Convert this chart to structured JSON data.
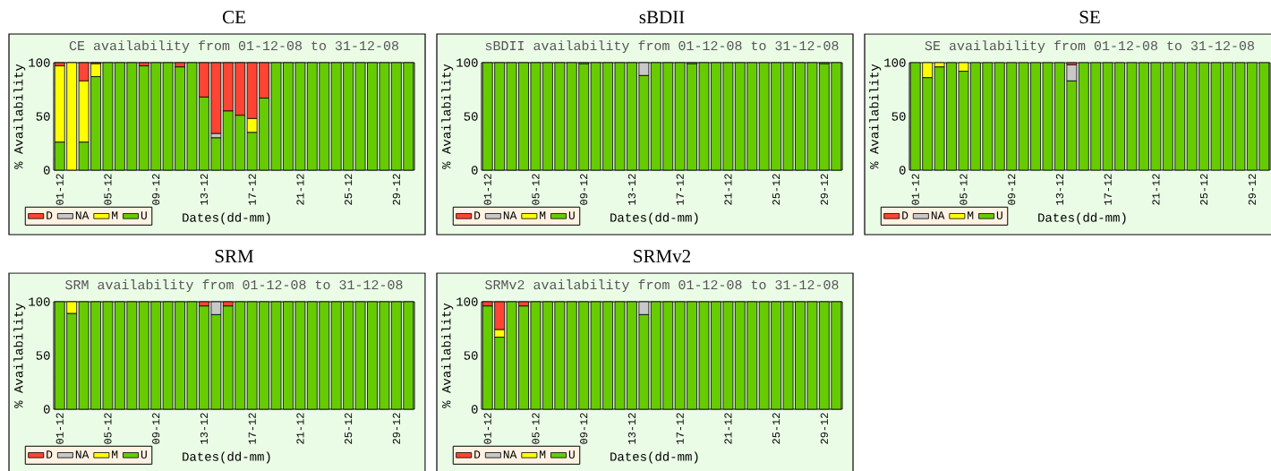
{
  "chart_data": [
    {
      "type": "bar",
      "stacked": true,
      "title": "CE",
      "subtitle": "CE availability from 01-12-08 to 31-12-08",
      "xlabel": "Dates(dd-mm)",
      "ylabel": "% Availability",
      "legend": "bottom left",
      "categories": [
        "01-12",
        null,
        null,
        null,
        "05-12",
        null,
        null,
        null,
        "09-12",
        null,
        null,
        null,
        "13-12",
        null,
        null,
        null,
        "17-12",
        null,
        null,
        null,
        "21-12",
        null,
        null,
        null,
        "25-12",
        null,
        null,
        null,
        "29-12",
        null
      ],
      "ylim": [
        0,
        100
      ],
      "yticks": [
        0,
        {
          "value": 10,
          "label": null
        },
        {
          "value": 20,
          "label": null
        },
        {
          "value": 30,
          "label": null
        },
        {
          "value": 40,
          "label": null
        },
        50,
        {
          "value": 60,
          "label": null
        },
        {
          "value": 70,
          "label": null
        },
        {
          "value": 80,
          "label": null
        },
        {
          "value": 90,
          "label": null
        },
        100
      ],
      "series": [
        {
          "name": "U",
          "color": "#66cc00",
          "values": [
            26,
            0,
            26,
            87,
            100,
            100,
            100,
            97,
            100,
            100,
            96,
            100,
            68,
            30,
            55,
            51,
            35,
            67,
            100,
            100,
            100,
            100,
            100,
            100,
            100,
            100,
            100,
            100,
            100,
            100
          ]
        },
        {
          "name": "M",
          "color": "#ffff00",
          "values": [
            71,
            100,
            57,
            12,
            0,
            0,
            0,
            0,
            0,
            0,
            0,
            0,
            0,
            0,
            0,
            0,
            13,
            0,
            0,
            0,
            0,
            0,
            0,
            0,
            0,
            0,
            0,
            0,
            0,
            0
          ]
        },
        {
          "name": "NA",
          "color": "#c8c8c8",
          "values": [
            0,
            0,
            0,
            0,
            0,
            0,
            0,
            0,
            0,
            0,
            0,
            0,
            0,
            4,
            0,
            0,
            0,
            0,
            0,
            0,
            0,
            0,
            0,
            0,
            0,
            0,
            0,
            0,
            0,
            0
          ]
        },
        {
          "name": "D",
          "color": "#ff4433",
          "values": [
            3,
            0,
            17,
            1,
            0,
            0,
            0,
            3,
            0,
            0,
            4,
            0,
            32,
            66,
            45,
            49,
            52,
            33,
            0,
            0,
            0,
            0,
            0,
            0,
            0,
            0,
            0,
            0,
            0,
            0
          ]
        }
      ]
    },
    {
      "type": "bar",
      "stacked": true,
      "title": "sBDII",
      "subtitle": "sBDII availability from 01-12-08 to 31-12-08",
      "xlabel": "Dates(dd-mm)",
      "ylabel": "% Availability",
      "legend": "bottom left",
      "categories": [
        "01-12",
        null,
        null,
        null,
        "05-12",
        null,
        null,
        null,
        "09-12",
        null,
        null,
        null,
        "13-12",
        null,
        null,
        null,
        "17-12",
        null,
        null,
        null,
        "21-12",
        null,
        null,
        null,
        "25-12",
        null,
        null,
        null,
        "29-12",
        null
      ],
      "ylim": [
        0,
        100
      ],
      "yticks": [
        0,
        {
          "value": 10,
          "label": null
        },
        {
          "value": 20,
          "label": null
        },
        {
          "value": 30,
          "label": null
        },
        {
          "value": 40,
          "label": null
        },
        50,
        {
          "value": 60,
          "label": null
        },
        {
          "value": 70,
          "label": null
        },
        {
          "value": 80,
          "label": null
        },
        {
          "value": 90,
          "label": null
        },
        100
      ],
      "series": [
        {
          "name": "U",
          "color": "#66cc00",
          "values": [
            100,
            100,
            100,
            100,
            100,
            100,
            100,
            100,
            99,
            100,
            100,
            100,
            100,
            88,
            100,
            100,
            100,
            99,
            100,
            100,
            100,
            100,
            100,
            100,
            100,
            100,
            100,
            100,
            99,
            100
          ]
        },
        {
          "name": "M",
          "color": "#ffff00",
          "values": [
            0,
            0,
            0,
            0,
            0,
            0,
            0,
            0,
            0,
            0,
            0,
            0,
            0,
            0,
            0,
            0,
            0,
            0,
            0,
            0,
            0,
            0,
            0,
            0,
            0,
            0,
            0,
            0,
            0,
            0
          ]
        },
        {
          "name": "NA",
          "color": "#c8c8c8",
          "values": [
            0,
            0,
            0,
            0,
            0,
            0,
            0,
            0,
            1,
            0,
            0,
            0,
            0,
            12,
            0,
            0,
            0,
            1,
            0,
            0,
            0,
            0,
            0,
            0,
            0,
            0,
            0,
            0,
            1,
            0
          ]
        },
        {
          "name": "D",
          "color": "#ff4433",
          "values": [
            0,
            0,
            0,
            0,
            0,
            0,
            0,
            0,
            0,
            0,
            0,
            0,
            0,
            0,
            0,
            0,
            0,
            0,
            0,
            0,
            0,
            0,
            0,
            0,
            0,
            0,
            0,
            0,
            0,
            0
          ]
        }
      ]
    },
    {
      "type": "bar",
      "stacked": true,
      "title": "SE",
      "subtitle": "SE availability from 01-12-08 to 31-12-08",
      "xlabel": "Dates(dd-mm)",
      "ylabel": "% Availability",
      "legend": "bottom left",
      "categories": [
        "01-12",
        null,
        null,
        null,
        "05-12",
        null,
        null,
        null,
        "09-12",
        null,
        null,
        null,
        "13-12",
        null,
        null,
        null,
        "17-12",
        null,
        null,
        null,
        "21-12",
        null,
        null,
        null,
        "25-12",
        null,
        null,
        null,
        "29-12",
        null
      ],
      "ylim": [
        0,
        100
      ],
      "yticks": [
        0,
        {
          "value": 10,
          "label": null
        },
        {
          "value": 20,
          "label": null
        },
        {
          "value": 30,
          "label": null
        },
        {
          "value": 40,
          "label": null
        },
        50,
        {
          "value": 60,
          "label": null
        },
        {
          "value": 70,
          "label": null
        },
        {
          "value": 80,
          "label": null
        },
        {
          "value": 90,
          "label": null
        },
        100
      ],
      "series": [
        {
          "name": "U",
          "color": "#66cc00",
          "values": [
            100,
            86,
            96,
            100,
            92,
            100,
            100,
            100,
            100,
            100,
            100,
            100,
            100,
            83,
            100,
            100,
            100,
            100,
            100,
            100,
            100,
            100,
            100,
            100,
            100,
            100,
            100,
            100,
            100,
            100
          ]
        },
        {
          "name": "M",
          "color": "#ffff00",
          "values": [
            0,
            14,
            4,
            0,
            8,
            0,
            0,
            0,
            0,
            0,
            0,
            0,
            0,
            0,
            0,
            0,
            0,
            0,
            0,
            0,
            0,
            0,
            0,
            0,
            0,
            0,
            0,
            0,
            0,
            0
          ]
        },
        {
          "name": "NA",
          "color": "#c8c8c8",
          "values": [
            0,
            0,
            0,
            0,
            0,
            0,
            0,
            0,
            0,
            0,
            0,
            0,
            0,
            15,
            0,
            0,
            0,
            0,
            0,
            0,
            0,
            0,
            0,
            0,
            0,
            0,
            0,
            0,
            0,
            0
          ]
        },
        {
          "name": "D",
          "color": "#ff4433",
          "values": [
            0,
            0,
            0,
            0,
            0,
            0,
            0,
            0,
            0,
            0,
            0,
            0,
            0,
            2,
            0,
            0,
            0,
            0,
            0,
            0,
            0,
            0,
            0,
            0,
            0,
            0,
            0,
            0,
            0,
            0
          ]
        }
      ]
    },
    {
      "type": "bar",
      "stacked": true,
      "title": "SRM",
      "subtitle": "SRM availability from 01-12-08 to 31-12-08",
      "xlabel": "Dates(dd-mm)",
      "ylabel": "% Availability",
      "legend": "bottom left",
      "categories": [
        "01-12",
        null,
        null,
        null,
        "05-12",
        null,
        null,
        null,
        "09-12",
        null,
        null,
        null,
        "13-12",
        null,
        null,
        null,
        "17-12",
        null,
        null,
        null,
        "21-12",
        null,
        null,
        null,
        "25-12",
        null,
        null,
        null,
        "29-12",
        null
      ],
      "ylim": [
        0,
        100
      ],
      "yticks": [
        0,
        {
          "value": 10,
          "label": null
        },
        {
          "value": 20,
          "label": null
        },
        {
          "value": 30,
          "label": null
        },
        {
          "value": 40,
          "label": null
        },
        50,
        {
          "value": 60,
          "label": null
        },
        {
          "value": 70,
          "label": null
        },
        {
          "value": 80,
          "label": null
        },
        {
          "value": 90,
          "label": null
        },
        100
      ],
      "series": [
        {
          "name": "U",
          "color": "#66cc00",
          "values": [
            100,
            89,
            100,
            100,
            100,
            100,
            100,
            100,
            100,
            100,
            100,
            100,
            96,
            88,
            96,
            100,
            100,
            100,
            100,
            100,
            100,
            100,
            100,
            100,
            100,
            100,
            100,
            100,
            100,
            100
          ]
        },
        {
          "name": "M",
          "color": "#ffff00",
          "values": [
            0,
            11,
            0,
            0,
            0,
            0,
            0,
            0,
            0,
            0,
            0,
            0,
            0,
            0,
            0,
            0,
            0,
            0,
            0,
            0,
            0,
            0,
            0,
            0,
            0,
            0,
            0,
            0,
            0,
            0
          ]
        },
        {
          "name": "NA",
          "color": "#c8c8c8",
          "values": [
            0,
            0,
            0,
            0,
            0,
            0,
            0,
            0,
            0,
            0,
            0,
            0,
            0,
            12,
            0,
            0,
            0,
            0,
            0,
            0,
            0,
            0,
            0,
            0,
            0,
            0,
            0,
            0,
            0,
            0
          ]
        },
        {
          "name": "D",
          "color": "#ff4433",
          "values": [
            0,
            0,
            0,
            0,
            0,
            0,
            0,
            0,
            0,
            0,
            0,
            0,
            4,
            0,
            4,
            0,
            0,
            0,
            0,
            0,
            0,
            0,
            0,
            0,
            0,
            0,
            0,
            0,
            0,
            0
          ]
        }
      ]
    },
    {
      "type": "bar",
      "stacked": true,
      "title": "SRMv2",
      "subtitle": "SRMv2 availability from 01-12-08 to 31-12-08",
      "xlabel": "Dates(dd-mm)",
      "ylabel": "% Availability",
      "legend": "bottom left",
      "categories": [
        "01-12",
        null,
        null,
        null,
        "05-12",
        null,
        null,
        null,
        "09-12",
        null,
        null,
        null,
        "13-12",
        null,
        null,
        null,
        "17-12",
        null,
        null,
        null,
        "21-12",
        null,
        null,
        null,
        "25-12",
        null,
        null,
        null,
        "29-12",
        null
      ],
      "ylim": [
        0,
        100
      ],
      "yticks": [
        0,
        {
          "value": 10,
          "label": null
        },
        {
          "value": 20,
          "label": null
        },
        {
          "value": 30,
          "label": null
        },
        {
          "value": 40,
          "label": null
        },
        50,
        {
          "value": 60,
          "label": null
        },
        {
          "value": 70,
          "label": null
        },
        {
          "value": 80,
          "label": null
        },
        {
          "value": 90,
          "label": null
        },
        100
      ],
      "series": [
        {
          "name": "U",
          "color": "#66cc00",
          "values": [
            96,
            67,
            100,
            96,
            100,
            100,
            100,
            100,
            100,
            100,
            100,
            100,
            100,
            88,
            100,
            100,
            100,
            100,
            100,
            100,
            100,
            100,
            100,
            100,
            100,
            100,
            100,
            100,
            100,
            100
          ]
        },
        {
          "name": "M",
          "color": "#ffff00",
          "values": [
            0,
            7,
            0,
            0,
            0,
            0,
            0,
            0,
            0,
            0,
            0,
            0,
            0,
            0,
            0,
            0,
            0,
            0,
            0,
            0,
            0,
            0,
            0,
            0,
            0,
            0,
            0,
            0,
            0,
            0
          ]
        },
        {
          "name": "NA",
          "color": "#c8c8c8",
          "values": [
            0,
            0,
            0,
            0,
            0,
            0,
            0,
            0,
            0,
            0,
            0,
            0,
            0,
            12,
            0,
            0,
            0,
            0,
            0,
            0,
            0,
            0,
            0,
            0,
            0,
            0,
            0,
            0,
            0,
            0
          ]
        },
        {
          "name": "D",
          "color": "#ff4433",
          "values": [
            4,
            26,
            0,
            4,
            0,
            0,
            0,
            0,
            0,
            0,
            0,
            0,
            0,
            0,
            0,
            0,
            0,
            0,
            0,
            0,
            0,
            0,
            0,
            0,
            0,
            0,
            0,
            0,
            0,
            0
          ]
        }
      ]
    }
  ]
}
